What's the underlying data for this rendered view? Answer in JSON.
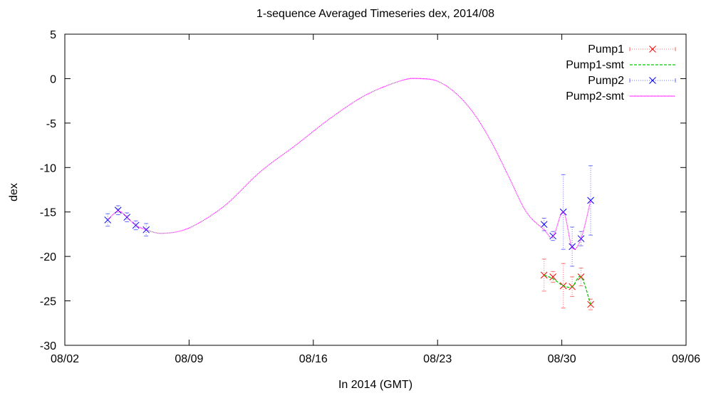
{
  "chart_data": {
    "type": "line",
    "title": "1-sequence Averaged Timeseries dex, 2014/08",
    "xlabel": "In 2014 (GMT)",
    "ylabel": "dex",
    "x_range": [
      "2014-08-02",
      "2014-09-06"
    ],
    "ylim": [
      -30,
      5
    ],
    "x_ticks": [
      {
        "date": "2014-08-02",
        "label": "08/02"
      },
      {
        "date": "2014-08-09",
        "label": "08/09"
      },
      {
        "date": "2014-08-16",
        "label": "08/16"
      },
      {
        "date": "2014-08-23",
        "label": "08/23"
      },
      {
        "date": "2014-08-30",
        "label": "08/30"
      },
      {
        "date": "2014-09-06",
        "label": "09/06"
      }
    ],
    "y_ticks": [
      5,
      0,
      -5,
      -10,
      -15,
      -20,
      -25,
      -30
    ],
    "grid": false,
    "legend_position": "top-right",
    "series": [
      {
        "name": "Pump1",
        "style": "points-errorbars",
        "marker": "x",
        "color": "#ff0000",
        "points": [
          {
            "x": "2014-08-29 00:00",
            "y": -22.1,
            "err": 1.8
          },
          {
            "x": "2014-08-29 12:00",
            "y": -22.3,
            "err": 0.6
          },
          {
            "x": "2014-08-30 02:00",
            "y": -23.3,
            "err": 2.5
          },
          {
            "x": "2014-08-30 14:00",
            "y": -23.4,
            "err": 1.1
          },
          {
            "x": "2014-08-31 02:00",
            "y": -22.3,
            "err": 1.0
          },
          {
            "x": "2014-08-31 15:00",
            "y": -25.4,
            "err": 0.6
          }
        ]
      },
      {
        "name": "Pump1-smt",
        "style": "dashed-line",
        "color": "#00cc00",
        "points": [
          {
            "x": "2014-08-29 00:00",
            "y": -22.1
          },
          {
            "x": "2014-08-29 12:00",
            "y": -22.5
          },
          {
            "x": "2014-08-30 02:00",
            "y": -23.3
          },
          {
            "x": "2014-08-30 14:00",
            "y": -23.4
          },
          {
            "x": "2014-08-31 02:00",
            "y": -22.3
          },
          {
            "x": "2014-08-31 15:00",
            "y": -25.4
          }
        ]
      },
      {
        "name": "Pump2",
        "style": "points-errorbars",
        "marker": "x",
        "color": "#0000ff",
        "points": [
          {
            "x": "2014-08-04 10:00",
            "y": -15.9,
            "err": 0.7
          },
          {
            "x": "2014-08-05 00:00",
            "y": -14.8,
            "err": 0.5
          },
          {
            "x": "2014-08-05 12:00",
            "y": -15.6,
            "err": 0.5
          },
          {
            "x": "2014-08-06 00:00",
            "y": -16.5,
            "err": 0.5
          },
          {
            "x": "2014-08-06 14:00",
            "y": -17.0,
            "err": 0.7
          },
          {
            "x": "2014-08-29 00:00",
            "y": -16.4,
            "err": 0.7
          },
          {
            "x": "2014-08-29 12:00",
            "y": -17.7,
            "err": 0.5
          },
          {
            "x": "2014-08-30 02:00",
            "y": -15.0,
            "err": 4.2
          },
          {
            "x": "2014-08-30 14:00",
            "y": -18.9,
            "err": 2.2
          },
          {
            "x": "2014-08-31 02:00",
            "y": -18.0,
            "err": 0.8
          },
          {
            "x": "2014-08-31 15:00",
            "y": -13.7,
            "err": 3.9
          }
        ]
      },
      {
        "name": "Pump2-smt",
        "style": "dotted-line",
        "color": "#ff00ff",
        "points": [
          {
            "x": "2014-08-04 10:00",
            "y": -15.9
          },
          {
            "x": "2014-08-05 00:00",
            "y": -14.9
          },
          {
            "x": "2014-08-05 12:00",
            "y": -15.6
          },
          {
            "x": "2014-08-06 00:00",
            "y": -16.5
          },
          {
            "x": "2014-08-06 14:00",
            "y": -17.0
          },
          {
            "x": "2014-08-07 12:00",
            "y": -17.4
          },
          {
            "x": "2014-08-09 00:00",
            "y": -16.8
          },
          {
            "x": "2014-08-11 00:00",
            "y": -14.3
          },
          {
            "x": "2014-08-13 00:00",
            "y": -10.5
          },
          {
            "x": "2014-08-15 00:00",
            "y": -7.5
          },
          {
            "x": "2014-08-17 00:00",
            "y": -4.4
          },
          {
            "x": "2014-08-19 00:00",
            "y": -1.8
          },
          {
            "x": "2014-08-21 00:00",
            "y": -0.2
          },
          {
            "x": "2014-08-22 00:00",
            "y": 0.0
          },
          {
            "x": "2014-08-23 00:00",
            "y": -0.3
          },
          {
            "x": "2014-08-24 00:00",
            "y": -1.6
          },
          {
            "x": "2014-08-25 00:00",
            "y": -3.8
          },
          {
            "x": "2014-08-26 00:00",
            "y": -7.0
          },
          {
            "x": "2014-08-27 00:00",
            "y": -11.0
          },
          {
            "x": "2014-08-28 00:00",
            "y": -15.0
          },
          {
            "x": "2014-08-29 00:00",
            "y": -17.0
          },
          {
            "x": "2014-08-29 12:00",
            "y": -17.8
          },
          {
            "x": "2014-08-30 02:00",
            "y": -15.0
          },
          {
            "x": "2014-08-30 14:00",
            "y": -19.0
          },
          {
            "x": "2014-08-31 02:00",
            "y": -18.0
          },
          {
            "x": "2014-08-31 15:00",
            "y": -13.7
          }
        ]
      }
    ]
  }
}
